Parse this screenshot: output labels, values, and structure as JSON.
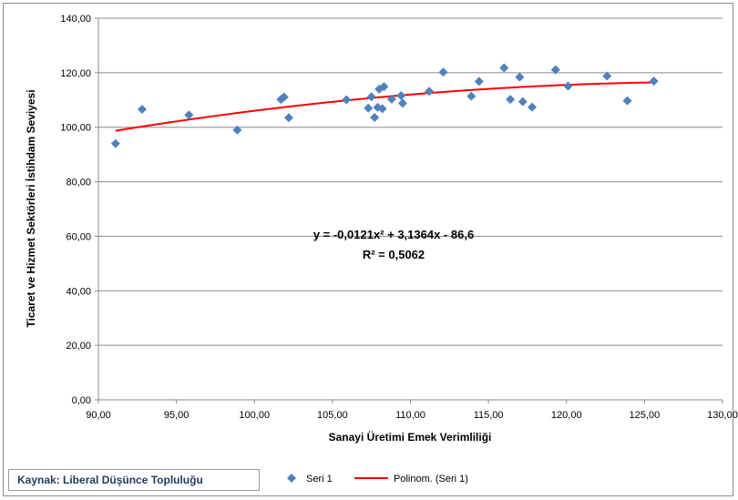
{
  "chart_data": {
    "type": "scatter",
    "xlabel": "Sanayi Üretimi Emek Verimliliği",
    "ylabel": "Ticaret ve Hizmet Sektörleri İstihdam Seviyesi",
    "xlim": [
      90,
      130
    ],
    "ylim": [
      0,
      140
    ],
    "x_ticks": [
      "90,00",
      "95,00",
      "100,00",
      "105,00",
      "110,00",
      "115,00",
      "120,00",
      "125,00",
      "130,00"
    ],
    "y_ticks": [
      "0,00",
      "20,00",
      "40,00",
      "60,00",
      "80,00",
      "100,00",
      "120,00",
      "140,00"
    ],
    "grid": "horizontal",
    "legend_position": "bottom",
    "series": [
      {
        "name": "Seri 1",
        "marker": "diamond",
        "color": "#4f81bd",
        "points": [
          [
            91.1,
            94.0
          ],
          [
            92.8,
            106.6
          ],
          [
            95.8,
            104.5
          ],
          [
            98.9,
            99.0
          ],
          [
            101.7,
            110.2
          ],
          [
            101.9,
            111.1
          ],
          [
            102.2,
            103.5
          ],
          [
            105.9,
            110.1
          ],
          [
            107.3,
            107.0
          ],
          [
            107.5,
            111.2
          ],
          [
            107.7,
            103.6
          ],
          [
            107.9,
            107.3
          ],
          [
            108.0,
            114.0
          ],
          [
            108.2,
            106.8
          ],
          [
            108.3,
            114.9
          ],
          [
            108.8,
            110.3
          ],
          [
            109.4,
            111.6
          ],
          [
            109.5,
            108.8
          ],
          [
            111.2,
            113.2
          ],
          [
            112.1,
            120.2
          ],
          [
            113.9,
            111.4
          ],
          [
            114.4,
            116.8
          ],
          [
            116.0,
            121.8
          ],
          [
            116.4,
            110.2
          ],
          [
            117.0,
            118.4
          ],
          [
            117.2,
            109.4
          ],
          [
            117.8,
            107.4
          ],
          [
            119.3,
            121.1
          ],
          [
            120.1,
            115.1
          ],
          [
            122.6,
            118.8
          ],
          [
            123.9,
            109.7
          ],
          [
            125.6,
            116.9
          ]
        ]
      },
      {
        "name": "Polinom. (Seri 1)",
        "type": "polynomial-trendline",
        "color": "#ff0000",
        "coefficients": {
          "a": -0.0121,
          "b": 3.1364,
          "c": -86.6
        },
        "x_range": [
          91.1,
          125.6
        ]
      }
    ],
    "annotations": {
      "equation": "y = -0,0121x² + 3,1364x - 86,6",
      "r_squared": "R² = 0,5062"
    }
  },
  "source_label": "Kaynak: Liberal Düşünce Topluluğu"
}
